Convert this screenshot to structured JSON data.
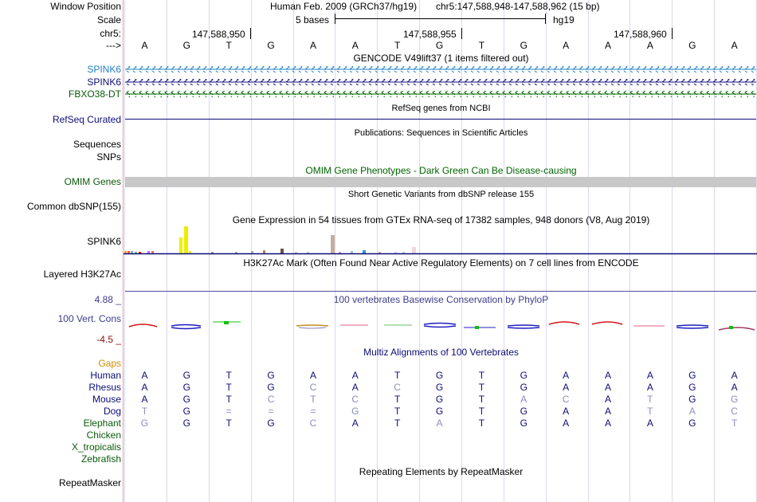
{
  "labels": {
    "window_position": "Window Position",
    "scale": "Scale",
    "chrom": "chr5:",
    "arrow": "--->",
    "spink6_gencode_a": "SPINK6",
    "spink6_gencode_b": "SPINK6",
    "fbxo38_dt": "FBXO38-DT",
    "refseq_curated": "RefSeq Curated",
    "sequences": "Sequences",
    "snps": "SNPs",
    "omim_genes": "OMIM Genes",
    "common_dbsnp": "Common dbSNP(155)",
    "spink6_gtex": "SPINK6",
    "layered_h3k27ac": "Layered H3K27Ac",
    "conservation_max": "4.88 _",
    "vert_cons": "100 Vert. Cons",
    "conservation_min": "-4.5 _",
    "gaps": "Gaps",
    "repeatmasker": "RepeatMasker"
  },
  "header": {
    "assembly": "Human Feb. 2009 (GRCh37/hg19)",
    "position": "chr5:147,588,948-147,588,962 (15 bp)",
    "scale_label": "5 bases",
    "db": "hg19",
    "ticks": [
      "147,588,950",
      "147,588,955",
      "147,588,960"
    ]
  },
  "sequence": [
    "A",
    "G",
    "T",
    "G",
    "A",
    "A",
    "T",
    "G",
    "T",
    "G",
    "A",
    "A",
    "A",
    "G",
    "A"
  ],
  "tracks": {
    "gencode": "GENCODE V49lift37 (1 items filtered out)",
    "refseq": "RefSeq genes from NCBI",
    "publications": "Publications: Sequences in Scientific Articles",
    "omim": "OMIM Gene Phenotypes - Dark Green Can Be Disease-causing",
    "dbsnp": "Short Genetic Variants from dbSNP release 155",
    "gtex": "Gene Expression in 54 tissues from GTEx RNA-seq of 17382 samples, 948 donors (V8, Aug 2019)",
    "h3k27ac": "H3K27Ac Mark (Often Found Near Active Regulatory Elements) on 7 cell lines from ENCODE",
    "phylop": "100 vertebrates Basewise Conservation by PhyloP",
    "multiz": "Multiz Alignments of 100 Vertebrates",
    "repeatmasker": "Repeating Elements by RepeatMasker"
  },
  "species": [
    {
      "name": "Human",
      "bases": [
        "A",
        "G",
        "T",
        "G",
        "A",
        "A",
        "T",
        "G",
        "T",
        "G",
        "A",
        "A",
        "A",
        "G",
        "A"
      ],
      "faint": []
    },
    {
      "name": "Rhesus",
      "bases": [
        "A",
        "G",
        "T",
        "G",
        "C",
        "A",
        "C",
        "G",
        "T",
        "G",
        "A",
        "A",
        "A",
        "G",
        "A"
      ],
      "faint": [
        4,
        6
      ]
    },
    {
      "name": "Mouse",
      "bases": [
        "A",
        "G",
        "T",
        "C",
        "T",
        "C",
        "T",
        "G",
        "T",
        "A",
        "C",
        "A",
        "T",
        "G",
        "G"
      ],
      "faint": [
        3,
        4,
        5,
        9,
        10,
        12,
        14
      ]
    },
    {
      "name": "Dog",
      "bases": [
        "T",
        "G",
        "=",
        "=",
        "=",
        "G",
        "T",
        "G",
        "T",
        "G",
        "A",
        "A",
        "T",
        "A",
        "C"
      ],
      "faint": [
        0,
        2,
        3,
        4,
        5,
        12,
        13,
        14
      ]
    },
    {
      "name": "Elephant",
      "bases": [
        "G",
        "G",
        "T",
        "G",
        "C",
        "A",
        "T",
        "A",
        "T",
        "G",
        "A",
        "A",
        "A",
        "G",
        "T"
      ],
      "faint": [
        0,
        4,
        7,
        14
      ]
    },
    {
      "name": "Chicken",
      "bases": [],
      "faint": []
    },
    {
      "name": "X_tropicalis",
      "bases": [],
      "faint": []
    },
    {
      "name": "Zebrafish",
      "bases": [],
      "faint": []
    }
  ],
  "colors": {
    "gencode_blue": "#1f7fbf",
    "navy": "#0c0c78",
    "green": "#006400",
    "label_green": "#0a5a0a",
    "gaps_orange": "#d28c00",
    "phylop_blue": "#3c3c8c",
    "cons_max_blue": "#3c3c8c",
    "cons_min_red": "#8c1010",
    "grid_line": "#d8d8f0",
    "omim_gray": "#c8c8c8",
    "faint_base": "#8c8cc0"
  }
}
